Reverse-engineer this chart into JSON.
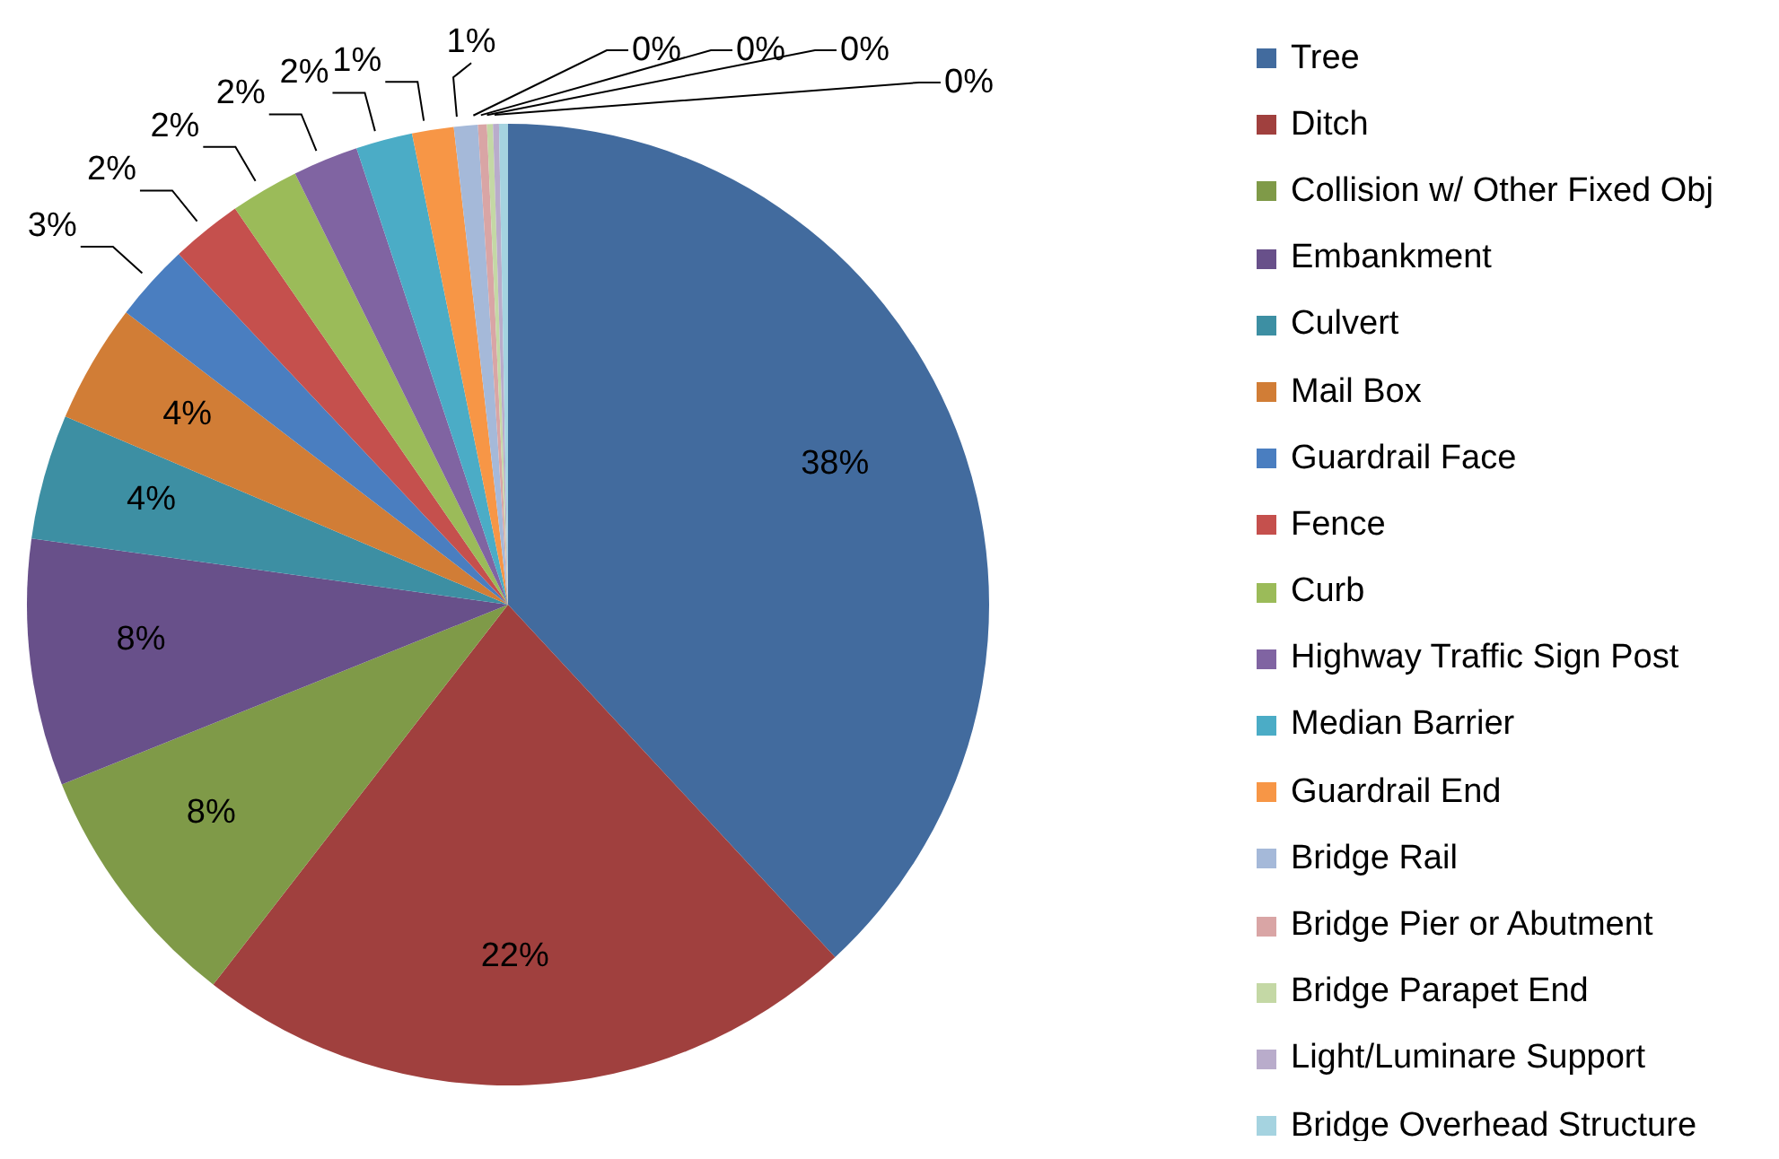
{
  "chart_data": {
    "type": "pie",
    "legend": "right",
    "categories": [
      "Tree",
      "Ditch",
      "Collision w/ Other Fixed Obj",
      "Embankment",
      "Culvert",
      "Mail Box",
      "Guardrail Face",
      "Fence",
      "Curb",
      "Highway Traffic Sign Post",
      "Median Barrier",
      "Guardrail End",
      "Bridge Rail",
      "Bridge Pier or Abutment",
      "Bridge Parapet End",
      "Light/Luminare Support",
      "Bridge Overhead Structure"
    ],
    "values": [
      38.1,
      22.4,
      8.4,
      8.3,
      4.2,
      4.0,
      2.6,
      2.4,
      2.3,
      2.2,
      1.9,
      1.4,
      0.8,
      0.3,
      0.2,
      0.2,
      0.3
    ],
    "value_labels": [
      "38%",
      "22%",
      "8%",
      "8%",
      "4%",
      "4%",
      "3%",
      "2%",
      "2%",
      "2%",
      "2%",
      "1%",
      "1%",
      "0%",
      "0%",
      "0%",
      "0%"
    ],
    "colors": [
      "#426b9e",
      "#a0403e",
      "#7f9a48",
      "#68508a",
      "#3d8fa3",
      "#d17d36",
      "#4a7ec0",
      "#c5504d",
      "#9bbb59",
      "#8064a2",
      "#4bacc6",
      "#f79646",
      "#a5b9d9",
      "#d9a5a5",
      "#c4d8a5",
      "#b9accb",
      "#a5d3e0"
    ]
  }
}
